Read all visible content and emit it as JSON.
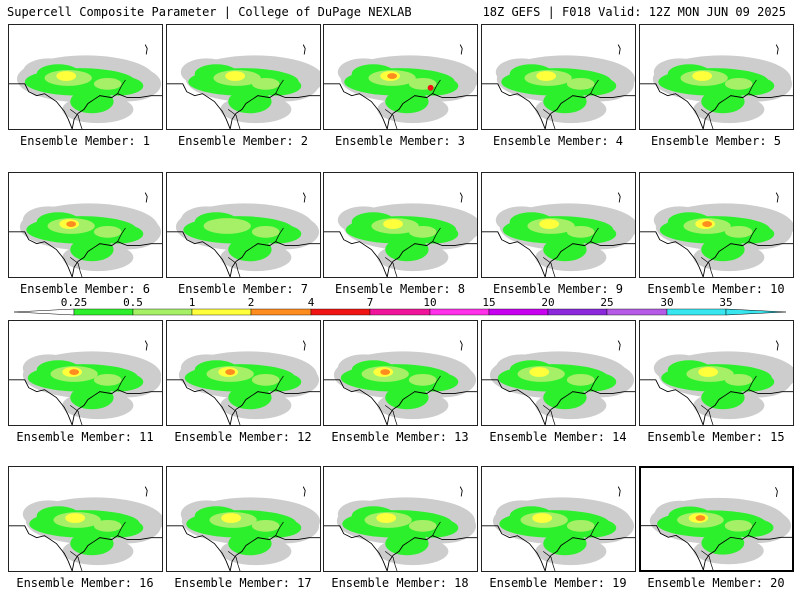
{
  "header": {
    "title": "Supercell Composite Parameter | College of DuPage NEXLAB",
    "run_info": "18Z GEFS | F018 Valid: 12Z MON JUN 09 2025"
  },
  "colors": {
    "gray": "#cdcdcd",
    "green": "#2df02d",
    "lightgreen": "#a6f068",
    "yellow": "#ffff3c",
    "orange": "#ff8c1e",
    "red": "#f01414",
    "magenta": "#f0149a",
    "pink": "#ff30e8",
    "purple": "#c800f0",
    "violet": "#8c28dc",
    "lavender": "#b45ae6",
    "cyan": "#38e6f0"
  },
  "colorbar": {
    "ticks": [
      "0.25",
      "0.5",
      "1",
      "2",
      "4",
      "7",
      "10",
      "15",
      "20",
      "25",
      "30",
      "35"
    ],
    "segments": [
      "lightgray",
      "green",
      "lightgreen",
      "yellow",
      "orange",
      "red",
      "magenta",
      "pink",
      "purple",
      "violet",
      "lavender",
      "cyan"
    ]
  },
  "panels": [
    {
      "label": "Ensemble Member: 1",
      "intensity": 1
    },
    {
      "label": "Ensemble Member: 2",
      "intensity": 1
    },
    {
      "label": "Ensemble Member: 3",
      "intensity": 3
    },
    {
      "label": "Ensemble Member: 4",
      "intensity": 1
    },
    {
      "label": "Ensemble Member: 5",
      "intensity": 1
    },
    {
      "label": "Ensemble Member: 6",
      "intensity": 2
    },
    {
      "label": "Ensemble Member: 7",
      "intensity": 0
    },
    {
      "label": "Ensemble Member: 8",
      "intensity": 1
    },
    {
      "label": "Ensemble Member: 9",
      "intensity": 1
    },
    {
      "label": "Ensemble Member: 10",
      "intensity": 2
    },
    {
      "label": "Ensemble Member: 11",
      "intensity": 2
    },
    {
      "label": "Ensemble Member: 12",
      "intensity": 2
    },
    {
      "label": "Ensemble Member: 13",
      "intensity": 2
    },
    {
      "label": "Ensemble Member: 14",
      "intensity": 1
    },
    {
      "label": "Ensemble Member: 15",
      "intensity": 1
    },
    {
      "label": "Ensemble Member: 16",
      "intensity": 1
    },
    {
      "label": "Ensemble Member: 17",
      "intensity": 1
    },
    {
      "label": "Ensemble Member: 18",
      "intensity": 1
    },
    {
      "label": "Ensemble Member: 19",
      "intensity": 1
    },
    {
      "label": "Ensemble Member: 20",
      "intensity": 2,
      "selected": true
    }
  ]
}
